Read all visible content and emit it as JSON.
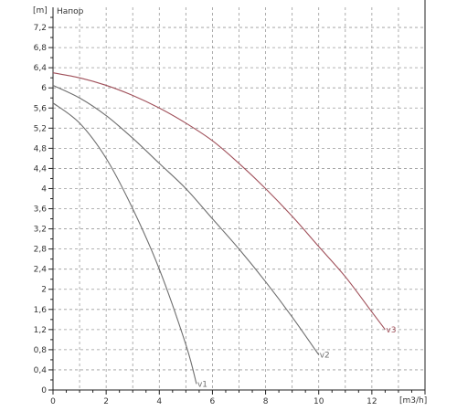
{
  "chart_data": {
    "type": "line",
    "title": "Напор",
    "ylabel": "[m]",
    "xlabel": "[m3/h]",
    "xlim": [
      0,
      14
    ],
    "ylim": [
      0,
      7.6
    ],
    "xticks": [
      0,
      2,
      4,
      6,
      8,
      10,
      12
    ],
    "xtick_labels": [
      "0",
      "2",
      "4",
      "6",
      "8",
      "10",
      "12"
    ],
    "yticks": [
      0,
      0.4,
      0.8,
      1.2,
      1.6,
      2,
      2.4,
      2.8,
      3.2,
      3.6,
      4,
      4.4,
      4.8,
      5.2,
      5.6,
      6,
      6.4,
      6.8,
      7.2
    ],
    "ytick_labels": [
      "0",
      "0,4",
      "0,8",
      "1,2",
      "1,6",
      "2",
      "2,4",
      "2,8",
      "3,2",
      "3,6",
      "4",
      "4,4",
      "4,8",
      "5,2",
      "5,6",
      "6",
      "6,4",
      "6,8",
      "7,2"
    ],
    "grid": true,
    "series": [
      {
        "name": "v1",
        "color": "#6e6e6e",
        "x": [
          0,
          1,
          2,
          3,
          4,
          5,
          5.4
        ],
        "y": [
          5.7,
          5.3,
          4.6,
          3.6,
          2.4,
          0.9,
          0.12
        ]
      },
      {
        "name": "v2",
        "color": "#6e6e6e",
        "x": [
          0,
          1,
          2,
          3,
          4,
          5,
          6,
          7,
          8,
          9,
          10
        ],
        "y": [
          6.05,
          5.8,
          5.45,
          5.0,
          4.5,
          4.0,
          3.4,
          2.8,
          2.15,
          1.45,
          0.7
        ]
      },
      {
        "name": "v3",
        "color": "#a0505a",
        "x": [
          0,
          1,
          2,
          3,
          4,
          5,
          6,
          7,
          8,
          9,
          10,
          11,
          12,
          12.5
        ],
        "y": [
          6.3,
          6.2,
          6.05,
          5.85,
          5.6,
          5.3,
          4.95,
          4.5,
          4.0,
          3.45,
          2.85,
          2.25,
          1.55,
          1.2
        ]
      }
    ]
  }
}
